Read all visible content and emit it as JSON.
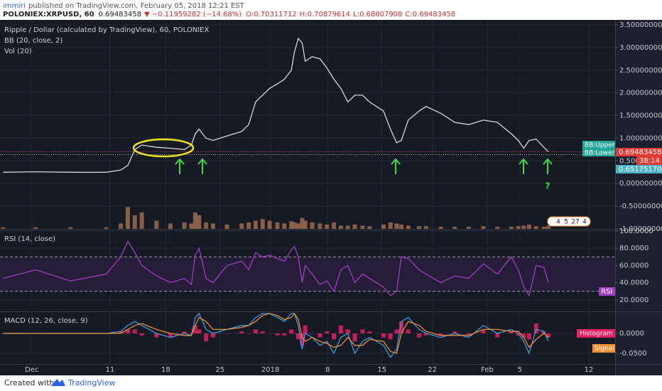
{
  "header": {
    "author": "immiri",
    "published": "published on TradingView.com, February 05, 2018 12:21 EST",
    "symbol": "POLONIEX:XRPUSD, 60",
    "last": "0.69483458",
    "change": "▼ −0.11959282 (−14.68%)",
    "open": "O:0.70311712",
    "high": "H:0.70879614",
    "low": "L:0.68807908",
    "close": "C:0.69483458"
  },
  "side_labels": {
    "bb_upper": "BB:Upper",
    "bb_lower": "BB:Lower",
    "last": "0.69483458",
    "countdown": "38:14",
    "lower_value": "0.65175170",
    "rsi": "RSI",
    "histogram": "Histogram",
    "signal": "Signal"
  },
  "annotation": "?",
  "badges": [
    4,
    5,
    27,
    4
  ],
  "footer": {
    "created": "Created with",
    "brand": "TradingView"
  },
  "chart_data": [
    {
      "type": "line",
      "title": "Ripple / Dollar (calculated by TradingView), 60, POLONIEX",
      "indicators": [
        "BB (20, close, 2)",
        "Vol (20)"
      ],
      "x": [
        -3.7,
        0.5,
        5.0,
        9.6,
        11.5,
        12.4,
        13.3,
        14.2,
        16.1,
        17.9,
        19.7,
        20.6,
        21.1,
        21.6,
        22.5,
        23.4,
        25.2,
        27.1,
        28.0,
        28.9,
        29.8,
        30.7,
        31.7,
        32.6,
        33.5,
        33.9,
        34.4,
        34.9,
        35.3,
        36.2,
        37.2,
        38.1,
        39.0,
        39.9,
        40.8,
        41.7,
        42.7,
        43.6,
        45.4,
        46.3,
        47.1,
        47.7,
        48.6,
        50.0,
        50.9,
        52.8,
        54.6,
        56.4,
        58.3,
        60.1,
        61.9,
        62.8,
        63.5,
        64.2,
        65.1,
        66.1,
        66.7
      ],
      "values": [
        0.25,
        0.26,
        0.25,
        0.25,
        0.3,
        0.4,
        0.75,
        0.85,
        0.8,
        0.78,
        0.75,
        0.85,
        1.1,
        1.2,
        1.0,
        0.95,
        1.05,
        1.15,
        1.3,
        1.8,
        1.95,
        2.1,
        2.2,
        2.3,
        2.5,
        2.9,
        3.2,
        3.1,
        2.7,
        2.8,
        2.75,
        2.55,
        2.3,
        2.1,
        1.8,
        1.95,
        1.95,
        1.8,
        1.6,
        1.2,
        0.9,
        0.95,
        1.4,
        1.6,
        1.7,
        1.55,
        1.35,
        1.3,
        1.4,
        1.35,
        1.1,
        0.95,
        0.78,
        0.95,
        0.98,
        0.8,
        0.7
      ],
      "color": "#d6d6d6",
      "xlim": [
        -4.1,
        75.3
      ],
      "ylim": [
        -1.0,
        3.61
      ],
      "grid": true,
      "yticks": [
        {
          "value": 3.5,
          "label": "3.50000000"
        },
        {
          "value": 3.0,
          "label": "3.00000000"
        },
        {
          "value": 2.5,
          "label": "2.50000000"
        },
        {
          "value": 2.0,
          "label": "2.00000000"
        },
        {
          "value": 1.5,
          "label": "1.50000000"
        },
        {
          "value": 1.0,
          "label": "1.00000000"
        },
        {
          "value": 0.5,
          "label": "0.500"
        },
        {
          "value": 0,
          "label": "0.00000000"
        },
        {
          "value": -0.5,
          "label": "-0.50000000"
        },
        {
          "value": -1.0,
          "label": "-1.00000000"
        }
      ]
    },
    {
      "type": "bar",
      "x": [
        -3.7,
        0.5,
        5.0,
        9.6,
        11.5,
        12.4,
        13.3,
        14.2,
        16.1,
        17.9,
        19.7,
        20.6,
        21.1,
        21.6,
        22.5,
        23.4,
        25.2,
        27.1,
        28.0,
        28.9,
        29.8,
        30.7,
        31.7,
        32.6,
        33.5,
        33.9,
        34.4,
        34.9,
        35.3,
        36.2,
        37.2,
        38.1,
        39.0,
        39.9,
        40.8,
        41.7,
        42.7,
        43.6,
        45.4,
        46.3,
        47.1,
        47.7,
        48.6,
        50.0,
        50.9,
        52.8,
        54.6,
        56.4,
        58.3,
        60.1,
        61.9,
        62.8,
        63.5,
        64.2,
        65.1,
        66.1,
        66.7
      ],
      "values": [
        3,
        3,
        3,
        3,
        10,
        40,
        25,
        30,
        15,
        10,
        12,
        10,
        30,
        25,
        12,
        10,
        8,
        10,
        12,
        15,
        18,
        15,
        12,
        10,
        14,
        12,
        10,
        20,
        15,
        12,
        10,
        8,
        12,
        6,
        6,
        8,
        6,
        5,
        8,
        12,
        10,
        8,
        6,
        5,
        5,
        4,
        4,
        4,
        5,
        4,
        4,
        5,
        6,
        8,
        5,
        4,
        6
      ],
      "color": "#9c6b4e",
      "xlim": [
        -4.1,
        75.3
      ],
      "ylim": [
        0,
        100
      ]
    },
    {
      "type": "line",
      "title": "RSI (14, close)",
      "x": [
        -3.7,
        0.5,
        5.0,
        9.6,
        11.5,
        12.4,
        13.3,
        14.2,
        16.1,
        17.9,
        19.7,
        20.6,
        21.1,
        21.6,
        22.5,
        23.4,
        25.2,
        27.1,
        28.0,
        28.9,
        29.8,
        30.7,
        31.7,
        32.6,
        33.5,
        33.9,
        34.4,
        34.9,
        35.3,
        36.2,
        37.2,
        38.1,
        39.0,
        39.9,
        40.8,
        41.7,
        42.7,
        43.6,
        45.4,
        46.3,
        47.1,
        47.7,
        48.6,
        50.0,
        50.9,
        52.8,
        54.6,
        56.4,
        58.3,
        60.1,
        61.9,
        62.8,
        63.5,
        64.2,
        65.1,
        66.1,
        66.7
      ],
      "values": [
        45,
        55,
        42,
        50,
        70,
        88,
        75,
        60,
        48,
        40,
        45,
        38,
        72,
        80,
        45,
        40,
        60,
        65,
        55,
        75,
        70,
        72,
        68,
        65,
        78,
        82,
        70,
        40,
        60,
        50,
        38,
        42,
        30,
        55,
        60,
        40,
        50,
        45,
        35,
        25,
        30,
        70,
        68,
        55,
        50,
        40,
        48,
        45,
        62,
        50,
        70,
        55,
        35,
        25,
        60,
        58,
        40
      ],
      "color": "#a13dc7",
      "levels": [
        70,
        30
      ],
      "xlim": [
        -4.1,
        75.3
      ],
      "ylim": [
        7.5,
        100
      ],
      "grid": true,
      "yticks": [
        {
          "value": 100,
          "label": "100.0000"
        },
        {
          "value": 80,
          "label": "80.0000"
        },
        {
          "value": 60,
          "label": "60.0000"
        },
        {
          "value": 40,
          "label": "40.0000"
        },
        {
          "value": 20,
          "label": "20.0000"
        }
      ]
    },
    {
      "type": "line",
      "title": "MACD (12, 26, close, 9)",
      "x": [
        -3.7,
        0.5,
        5.0,
        9.6,
        11.5,
        12.4,
        13.3,
        14.2,
        16.1,
        17.9,
        19.7,
        20.6,
        21.1,
        21.6,
        22.5,
        23.4,
        25.2,
        27.1,
        28.0,
        28.9,
        29.8,
        30.7,
        31.7,
        32.6,
        33.5,
        33.9,
        34.4,
        34.9,
        35.3,
        36.2,
        37.2,
        38.1,
        39.0,
        39.9,
        40.8,
        41.7,
        42.7,
        43.6,
        45.4,
        46.3,
        47.1,
        47.7,
        48.6,
        50.0,
        50.9,
        52.8,
        54.6,
        56.4,
        58.3,
        60.1,
        61.9,
        62.8,
        63.5,
        64.2,
        65.1,
        66.1,
        66.7
      ],
      "series": [
        {
          "name": "Histogram",
          "type": "bar",
          "color": "#e91e63",
          "values": [
            0,
            0,
            0,
            0,
            0.005,
            0.01,
            0.01,
            -0.005,
            -0.01,
            -0.01,
            0.005,
            0,
            0.02,
            0.01,
            -0.02,
            -0.01,
            0,
            0.005,
            0,
            0.01,
            0.005,
            0,
            -0.005,
            -0.005,
            0.01,
            0,
            -0.015,
            -0.03,
            0.02,
            0,
            -0.01,
            0.005,
            -0.015,
            0.02,
            0.01,
            -0.02,
            0.01,
            0.005,
            -0.01,
            -0.015,
            0.01,
            0.03,
            0.01,
            -0.01,
            -0.005,
            -0.005,
            0.005,
            -0.005,
            0.01,
            -0.01,
            0.005,
            -0.005,
            -0.01,
            -0.015,
            0.025,
            0.005,
            -0.01
          ]
        },
        {
          "color": "#3c9bdc",
          "values": [
            0,
            0,
            0,
            0,
            0.005,
            0.02,
            0.03,
            0.02,
            0,
            -0.01,
            0,
            -0.005,
            0.04,
            0.05,
            0.01,
            0,
            0.01,
            0.02,
            0.02,
            0.04,
            0.05,
            0.05,
            0.04,
            0.03,
            0.05,
            0.05,
            0.02,
            -0.04,
            0,
            -0.01,
            -0.03,
            -0.02,
            -0.05,
            -0.01,
            0,
            -0.05,
            -0.02,
            -0.01,
            -0.03,
            -0.06,
            -0.04,
            0.03,
            0.04,
            0.01,
            0,
            -0.01,
            0,
            -0.01,
            0.02,
            0,
            0.01,
            0,
            -0.02,
            -0.05,
            0.01,
            0.005,
            -0.02
          ]
        },
        {
          "name": "Signal",
          "color": "#f08c32",
          "values": [
            0,
            0,
            0,
            0,
            0,
            0.01,
            0.02,
            0.025,
            0.01,
            0,
            -0.005,
            -0.005,
            0.02,
            0.04,
            0.03,
            0.01,
            0.01,
            0.015,
            0.02,
            0.03,
            0.045,
            0.05,
            0.045,
            0.035,
            0.04,
            0.05,
            0.035,
            -0.01,
            -0.02,
            -0.01,
            -0.02,
            -0.025,
            -0.035,
            -0.03,
            -0.01,
            -0.03,
            -0.03,
            -0.015,
            -0.02,
            -0.045,
            -0.05,
            0,
            0.03,
            0.02,
            0.005,
            -0.005,
            -0.005,
            -0.005,
            0.01,
            0.01,
            0.005,
            0.005,
            -0.01,
            -0.035,
            -0.015,
            0,
            -0.01
          ]
        }
      ],
      "xlim": [
        -4.1,
        75.3
      ],
      "ylim": [
        -0.0768,
        0.0518
      ],
      "grid": true,
      "yticks": [
        {
          "value": 0,
          "label": "0.0000"
        },
        {
          "value": -0.05,
          "label": "-0.0500"
        }
      ],
      "xticks": [
        {
          "value": 0,
          "label": "Dec"
        },
        {
          "value": 10.1,
          "label": "11"
        },
        {
          "value": 17.3,
          "label": "18"
        },
        {
          "value": 24.3,
          "label": "25"
        },
        {
          "value": 30.8,
          "label": "2018"
        },
        {
          "value": 38.2,
          "label": "8"
        },
        {
          "value": 45.2,
          "label": "15"
        },
        {
          "value": 51.7,
          "label": "22"
        },
        {
          "value": 58.8,
          "label": "Feb"
        },
        {
          "value": 63.0,
          "label": "5"
        },
        {
          "value": 71.9,
          "label": "12"
        }
      ]
    }
  ]
}
